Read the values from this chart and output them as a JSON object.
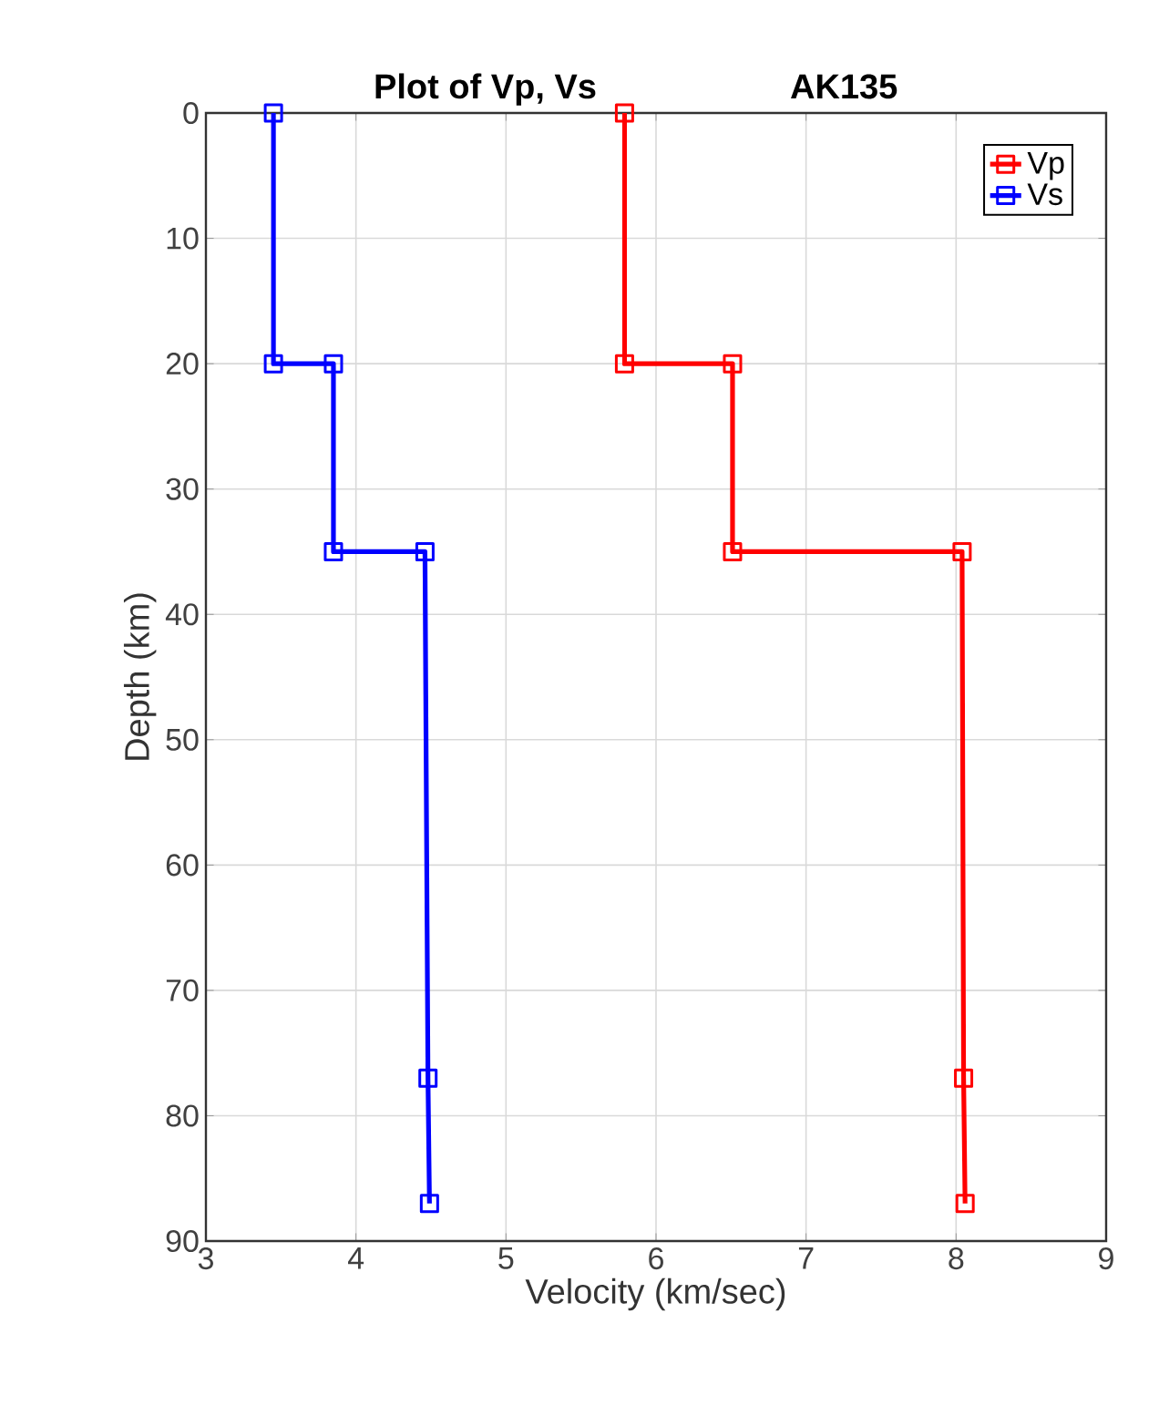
{
  "chart_data": {
    "type": "line",
    "title": "Plot of Vp, Vs",
    "subtitle": "AK135",
    "xlabel": "Velocity (km/sec)",
    "ylabel": "Depth (km)",
    "series": [
      {
        "name": "Vp",
        "color": "#ff0000",
        "x": [
          5.79,
          5.79,
          6.51,
          6.51,
          8.04,
          8.05,
          8.06
        ],
        "values": [
          0,
          20,
          20,
          35,
          35,
          77,
          87
        ]
      },
      {
        "name": "Vs",
        "color": "#0000ff",
        "x": [
          3.45,
          3.45,
          3.85,
          3.85,
          4.46,
          4.48,
          4.49
        ],
        "values": [
          0,
          20,
          20,
          35,
          35,
          77,
          87
        ]
      }
    ],
    "xlim": [
      3,
      9
    ],
    "xticks": [
      3,
      4,
      5,
      6,
      7,
      8,
      9
    ],
    "ylim": [
      90,
      0
    ],
    "yticks": [
      0,
      10,
      20,
      30,
      40,
      50,
      60,
      70,
      80,
      90
    ],
    "grid": true,
    "legend": "top right",
    "marker": "square",
    "line_style": "solid"
  }
}
